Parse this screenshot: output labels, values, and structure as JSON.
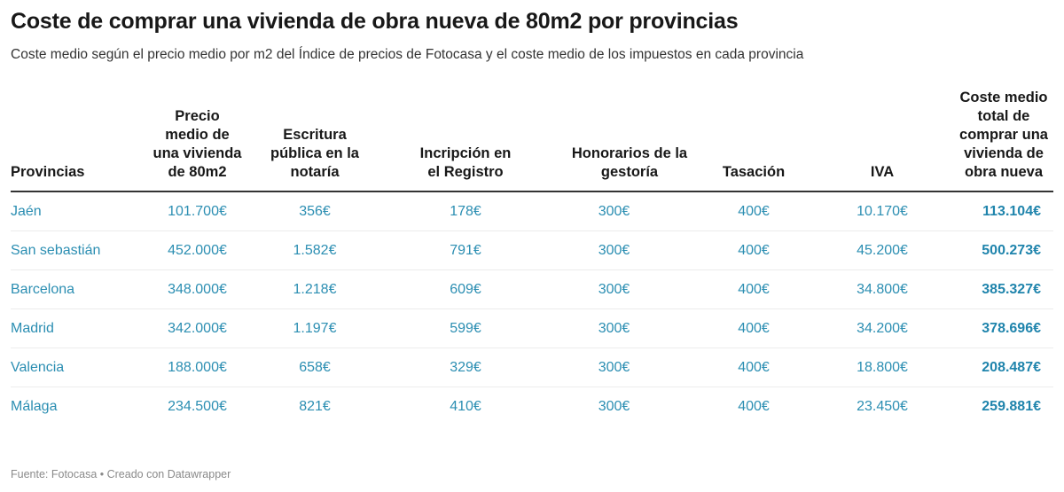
{
  "title": "Coste de comprar una vivienda de obra nueva de 80m2 por provincias",
  "subtitle": "Coste medio según el precio medio por m2 del Índice de precios de Fotocasa y el coste medio de los impuestos en cada provincia",
  "footer": "Fuente: Fotocasa • Creado con Datawrapper",
  "colors": {
    "value_text": "#2b8eb2",
    "total_text": "#1f84ac",
    "header_rule": "#333333"
  },
  "chart_data": {
    "type": "table",
    "columns": [
      "Provincias",
      "Precio medio de una vivienda de 80m2",
      "Escritura pública en la notaría",
      "Incripción en el Registro",
      "Honorarios de la gestoría",
      "Tasación",
      "IVA",
      "Coste medio total de comprar una vivienda de obra nueva"
    ],
    "rows": [
      [
        "Jaén",
        "101.700€",
        "356€",
        "178€",
        "300€",
        "400€",
        "10.170€",
        "113.104€"
      ],
      [
        "San sebastián",
        "452.000€",
        "1.582€",
        "791€",
        "300€",
        "400€",
        "45.200€",
        "500.273€"
      ],
      [
        "Barcelona",
        "348.000€",
        "1.218€",
        "609€",
        "300€",
        "400€",
        "34.800€",
        "385.327€"
      ],
      [
        "Madrid",
        "342.000€",
        "1.197€",
        "599€",
        "300€",
        "400€",
        "34.200€",
        "378.696€"
      ],
      [
        "Valencia",
        "188.000€",
        "658€",
        "329€",
        "300€",
        "400€",
        "18.800€",
        "208.487€"
      ],
      [
        "Málaga",
        "234.500€",
        "821€",
        "410€",
        "300€",
        "400€",
        "23.450€",
        "259.881€"
      ]
    ]
  }
}
